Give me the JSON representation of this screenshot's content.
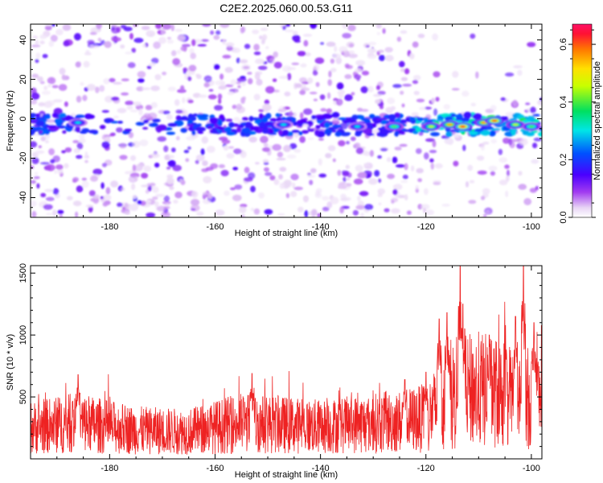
{
  "title": "C2E2.2025.060.00.53.G11",
  "chart_data": [
    {
      "type": "heatmap",
      "xlabel": "Height of straight line (km)",
      "ylabel": "Frequency (Hz)",
      "xlim": [
        -195,
        -98
      ],
      "ylim": [
        -50,
        48
      ],
      "xticks": [
        -180,
        -160,
        -140,
        -120,
        -100
      ],
      "yticks": [
        -40,
        -20,
        0,
        20,
        40
      ],
      "colorbar": {
        "label": "Normalized spectral amplitude",
        "range": [
          0,
          0.67
        ],
        "ticks": [
          0.0,
          0.2,
          0.4,
          0.6
        ],
        "tick_labels": [
          "0.0",
          "0.2",
          "0.4",
          "0.6"
        ]
      },
      "band": {
        "frequency_center": -3,
        "frequency_halfwidth": 5
      },
      "hotspots": [
        {
          "x": -186,
          "y": -2,
          "value": 0.3
        },
        {
          "x": -147,
          "y": -3,
          "value": 0.3
        },
        {
          "x": -133,
          "y": -4,
          "value": 0.3
        },
        {
          "x": -126,
          "y": -4,
          "value": 0.4
        },
        {
          "x": -119,
          "y": -4,
          "value": 0.45
        },
        {
          "x": -115.5,
          "y": -3,
          "value": 0.55
        },
        {
          "x": -113,
          "y": -4,
          "value": 0.62
        },
        {
          "x": -109,
          "y": -2,
          "value": 0.55
        },
        {
          "x": -107,
          "y": -1,
          "value": 0.6
        },
        {
          "x": -103,
          "y": -3,
          "value": 0.45
        },
        {
          "x": -100,
          "y": -4,
          "value": 0.4
        }
      ]
    },
    {
      "type": "line",
      "xlabel": "Height of straight line (km)",
      "ylabel": "SNR (10 * v/v)",
      "xlim": [
        -195,
        -98
      ],
      "ylim": [
        0,
        1560
      ],
      "xticks": [
        -180,
        -160,
        -140,
        -120,
        -100
      ],
      "yticks": [
        500,
        1000,
        1500
      ],
      "series": [
        {
          "color": "#ee2222",
          "baseline_profile": [
            {
              "x": -195,
              "y": 250
            },
            {
              "x": -186,
              "y": 290
            },
            {
              "x": -175,
              "y": 230
            },
            {
              "x": -165,
              "y": 220
            },
            {
              "x": -155,
              "y": 290
            },
            {
              "x": -140,
              "y": 260
            },
            {
              "x": -125,
              "y": 300
            },
            {
              "x": -120,
              "y": 330
            },
            {
              "x": -115,
              "y": 520
            },
            {
              "x": -110,
              "y": 560
            },
            {
              "x": -105,
              "y": 520
            },
            {
              "x": -98,
              "y": 470
            }
          ],
          "peaks": [
            {
              "x": -186,
              "y": 680
            },
            {
              "x": -153,
              "y": 690
            },
            {
              "x": -124,
              "y": 640
            },
            {
              "x": -120,
              "y": 700
            },
            {
              "x": -117.5,
              "y": 1130
            },
            {
              "x": -116,
              "y": 1180
            },
            {
              "x": -113.5,
              "y": 1560
            },
            {
              "x": -113,
              "y": 1250
            },
            {
              "x": -108,
              "y": 1000
            },
            {
              "x": -103,
              "y": 1150
            },
            {
              "x": -101.5,
              "y": 1560
            },
            {
              "x": -99.5,
              "y": 1100
            }
          ]
        }
      ]
    }
  ]
}
